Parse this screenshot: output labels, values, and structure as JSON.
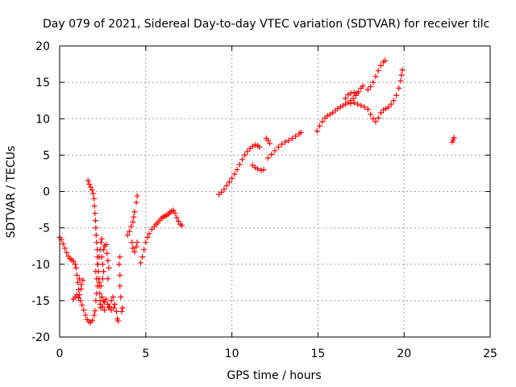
{
  "chart_data": {
    "type": "scatter",
    "title": "Day 079 of 2021, Sidereal Day-to-day VTEC variation (SDTVAR) for receiver tilc",
    "xlabel": "GPS time / hours",
    "ylabel": "SDTVAR / TECUs",
    "xlim": [
      0,
      25
    ],
    "ylim": [
      -20,
      20
    ],
    "xticks": [
      0,
      5,
      10,
      15,
      20,
      25
    ],
    "yticks": [
      -20,
      -15,
      -10,
      -5,
      0,
      5,
      10,
      15,
      20
    ],
    "grid": true,
    "marker": "plus",
    "color": "#ff0000",
    "series": [
      {
        "points": [
          [
            0.0,
            -6.3
          ],
          [
            0.1,
            -6.6
          ],
          [
            0.2,
            -7.2
          ],
          [
            0.3,
            -7.8
          ],
          [
            0.4,
            -8.4
          ],
          [
            0.5,
            -8.9
          ],
          [
            0.6,
            -9.2
          ],
          [
            0.7,
            -9.4
          ],
          [
            0.8,
            -9.6
          ],
          [
            0.9,
            -10.0
          ],
          [
            0.95,
            -10.5
          ],
          [
            1.0,
            -11.5
          ],
          [
            1.05,
            -12.5
          ],
          [
            1.1,
            -13.5
          ],
          [
            1.15,
            -14.2
          ],
          [
            0.8,
            -14.8
          ],
          [
            0.9,
            -14.5
          ],
          [
            1.0,
            -14.2
          ],
          [
            1.1,
            -14.6
          ],
          [
            1.2,
            -15.0
          ],
          [
            1.3,
            -15.6
          ],
          [
            1.4,
            -16.3
          ],
          [
            1.5,
            -17.0
          ],
          [
            1.6,
            -17.6
          ],
          [
            1.7,
            -17.9
          ],
          [
            1.8,
            -18.0
          ],
          [
            1.9,
            -17.7
          ],
          [
            2.0,
            -17.0
          ],
          [
            2.05,
            -16.4
          ],
          [
            1.25,
            -12.8
          ],
          [
            1.15,
            -12.0
          ],
          [
            1.35,
            -12.2
          ],
          [
            1.25,
            -13.4
          ],
          [
            1.65,
            1.5
          ],
          [
            1.72,
            1.0
          ],
          [
            1.8,
            0.6
          ],
          [
            1.88,
            0.2
          ],
          [
            1.95,
            -0.3
          ],
          [
            2.0,
            -1.0
          ],
          [
            2.02,
            -2.0
          ],
          [
            2.05,
            -3.0
          ],
          [
            2.08,
            -4.0
          ],
          [
            2.1,
            -5.0
          ],
          [
            2.12,
            -6.0
          ],
          [
            2.15,
            -7.0
          ],
          [
            2.18,
            -8.0
          ],
          [
            2.2,
            -9.0
          ],
          [
            2.22,
            -10.0
          ],
          [
            2.25,
            -11.0
          ],
          [
            2.28,
            -12.0
          ],
          [
            2.3,
            -13.0
          ],
          [
            2.33,
            -14.0
          ],
          [
            2.35,
            -15.0
          ],
          [
            2.38,
            -16.0
          ],
          [
            2.1,
            -15.0
          ],
          [
            2.15,
            -14.0
          ],
          [
            2.2,
            -13.0
          ],
          [
            2.15,
            -12.0
          ],
          [
            2.1,
            -11.0
          ],
          [
            2.2,
            -10.0
          ],
          [
            2.3,
            -9.0
          ],
          [
            2.35,
            -8.0
          ],
          [
            2.4,
            -7.0
          ],
          [
            2.45,
            -6.5
          ],
          [
            2.3,
            -12.5
          ],
          [
            2.4,
            -13.0
          ],
          [
            2.5,
            -12.0
          ],
          [
            2.55,
            -11.0
          ],
          [
            2.5,
            -10.0
          ],
          [
            2.45,
            -9.0
          ],
          [
            2.55,
            -8.0
          ],
          [
            2.6,
            -7.5
          ],
          [
            2.7,
            -7.3
          ],
          [
            2.75,
            -8.5
          ],
          [
            2.8,
            -9.5
          ],
          [
            2.85,
            -10.5
          ],
          [
            2.8,
            -12.0
          ],
          [
            2.35,
            -15.5
          ],
          [
            2.5,
            -15.8
          ],
          [
            2.6,
            -15.2
          ],
          [
            2.7,
            -14.8
          ],
          [
            2.8,
            -15.5
          ],
          [
            2.9,
            -15.8
          ],
          [
            3.0,
            -15.0
          ],
          [
            3.1,
            -14.5
          ],
          [
            3.2,
            -15.5
          ],
          [
            3.3,
            -16.5
          ],
          [
            3.35,
            -17.5
          ],
          [
            3.4,
            -17.8
          ],
          [
            2.45,
            -14.5
          ],
          [
            2.6,
            -16.3
          ],
          [
            2.85,
            -16.0
          ],
          [
            3.0,
            -16.3
          ],
          [
            3.15,
            -16.0
          ],
          [
            2.55,
            -15.0
          ],
          [
            3.6,
            -16.5
          ],
          [
            3.65,
            -16.0
          ],
          [
            3.55,
            -14.5
          ],
          [
            3.5,
            -13.0
          ],
          [
            3.5,
            -11.5
          ],
          [
            3.45,
            -10.0
          ],
          [
            3.5,
            -9.0
          ],
          [
            3.95,
            -6.0
          ],
          [
            4.05,
            -5.5
          ],
          [
            4.15,
            -4.8
          ],
          [
            4.25,
            -4.2
          ],
          [
            4.3,
            -3.5
          ],
          [
            4.35,
            -2.8
          ],
          [
            4.45,
            -1.5
          ],
          [
            4.5,
            -0.6
          ],
          [
            4.2,
            -7.0
          ],
          [
            4.25,
            -7.8
          ],
          [
            4.35,
            -8.3
          ],
          [
            4.45,
            -7.6
          ],
          [
            4.5,
            -7.0
          ],
          [
            4.7,
            -9.8
          ],
          [
            4.8,
            -9.0
          ],
          [
            4.9,
            -8.0
          ],
          [
            5.0,
            -7.0
          ],
          [
            5.1,
            -6.3
          ],
          [
            5.2,
            -5.8
          ],
          [
            5.35,
            -5.2
          ],
          [
            5.5,
            -4.8
          ],
          [
            5.6,
            -4.5
          ],
          [
            5.7,
            -4.3
          ],
          [
            5.8,
            -4.0
          ],
          [
            5.9,
            -3.7
          ],
          [
            6.0,
            -3.5
          ],
          [
            6.1,
            -3.4
          ],
          [
            6.2,
            -3.3
          ],
          [
            6.3,
            -3.1
          ],
          [
            6.4,
            -2.9
          ],
          [
            6.5,
            -2.7
          ],
          [
            6.6,
            -2.6
          ],
          [
            6.7,
            -3.0
          ],
          [
            6.8,
            -3.6
          ],
          [
            6.9,
            -4.1
          ],
          [
            7.0,
            -4.5
          ],
          [
            7.1,
            -4.7
          ],
          [
            9.25,
            -0.4
          ],
          [
            9.4,
            -0.1
          ],
          [
            9.55,
            0.3
          ],
          [
            9.7,
            0.8
          ],
          [
            9.85,
            1.3
          ],
          [
            10.0,
            1.8
          ],
          [
            10.15,
            2.4
          ],
          [
            10.3,
            3.0
          ],
          [
            10.45,
            3.7
          ],
          [
            10.6,
            4.4
          ],
          [
            10.75,
            5.0
          ],
          [
            10.9,
            5.5
          ],
          [
            11.05,
            5.9
          ],
          [
            11.2,
            6.2
          ],
          [
            11.35,
            6.4
          ],
          [
            11.5,
            6.3
          ],
          [
            11.6,
            6.1
          ],
          [
            11.2,
            3.6
          ],
          [
            11.35,
            3.3
          ],
          [
            11.5,
            3.1
          ],
          [
            11.7,
            2.9
          ],
          [
            11.85,
            3.0
          ],
          [
            12.0,
            7.3
          ],
          [
            12.1,
            7.0
          ],
          [
            12.2,
            6.6
          ],
          [
            12.1,
            4.6
          ],
          [
            12.3,
            5.1
          ],
          [
            12.5,
            5.6
          ],
          [
            12.7,
            6.1
          ],
          [
            12.9,
            6.5
          ],
          [
            13.1,
            6.8
          ],
          [
            13.3,
            7.0
          ],
          [
            13.5,
            7.3
          ],
          [
            13.7,
            7.6
          ],
          [
            13.9,
            7.9
          ],
          [
            14.0,
            8.1
          ],
          [
            14.95,
            8.3
          ],
          [
            15.1,
            9.0
          ],
          [
            15.25,
            9.6
          ],
          [
            15.4,
            10.1
          ],
          [
            15.55,
            10.4
          ],
          [
            15.7,
            10.6
          ],
          [
            15.85,
            10.8
          ],
          [
            16.0,
            11.1
          ],
          [
            16.15,
            11.4
          ],
          [
            16.3,
            11.6
          ],
          [
            16.45,
            11.8
          ],
          [
            16.6,
            12.0
          ],
          [
            16.75,
            12.2
          ],
          [
            16.9,
            12.5
          ],
          [
            17.05,
            12.8
          ],
          [
            17.2,
            13.2
          ],
          [
            17.35,
            13.7
          ],
          [
            17.5,
            14.2
          ],
          [
            17.6,
            14.5
          ],
          [
            16.6,
            12.8
          ],
          [
            16.75,
            13.3
          ],
          [
            16.9,
            13.5
          ],
          [
            17.1,
            13.6
          ],
          [
            17.25,
            13.5
          ],
          [
            16.9,
            12.1
          ],
          [
            17.1,
            12.2
          ],
          [
            17.3,
            12.0
          ],
          [
            17.5,
            11.8
          ],
          [
            17.7,
            11.6
          ],
          [
            17.9,
            11.3
          ],
          [
            18.05,
            10.6
          ],
          [
            18.2,
            10.0
          ],
          [
            18.35,
            9.6
          ],
          [
            18.5,
            10.1
          ],
          [
            18.65,
            10.8
          ],
          [
            18.8,
            11.2
          ],
          [
            18.95,
            11.4
          ],
          [
            19.1,
            11.6
          ],
          [
            19.25,
            12.0
          ],
          [
            19.4,
            12.5
          ],
          [
            19.55,
            13.2
          ],
          [
            19.7,
            14.2
          ],
          [
            19.8,
            15.2
          ],
          [
            19.85,
            16.0
          ],
          [
            19.9,
            16.7
          ],
          [
            17.9,
            14.0
          ],
          [
            18.05,
            14.4
          ],
          [
            18.2,
            15.0
          ],
          [
            18.35,
            15.8
          ],
          [
            18.5,
            16.6
          ],
          [
            18.65,
            17.3
          ],
          [
            18.8,
            17.8
          ],
          [
            18.9,
            18.0
          ],
          [
            22.8,
            6.8
          ],
          [
            22.85,
            7.1
          ],
          [
            22.9,
            7.4
          ]
        ]
      }
    ]
  }
}
